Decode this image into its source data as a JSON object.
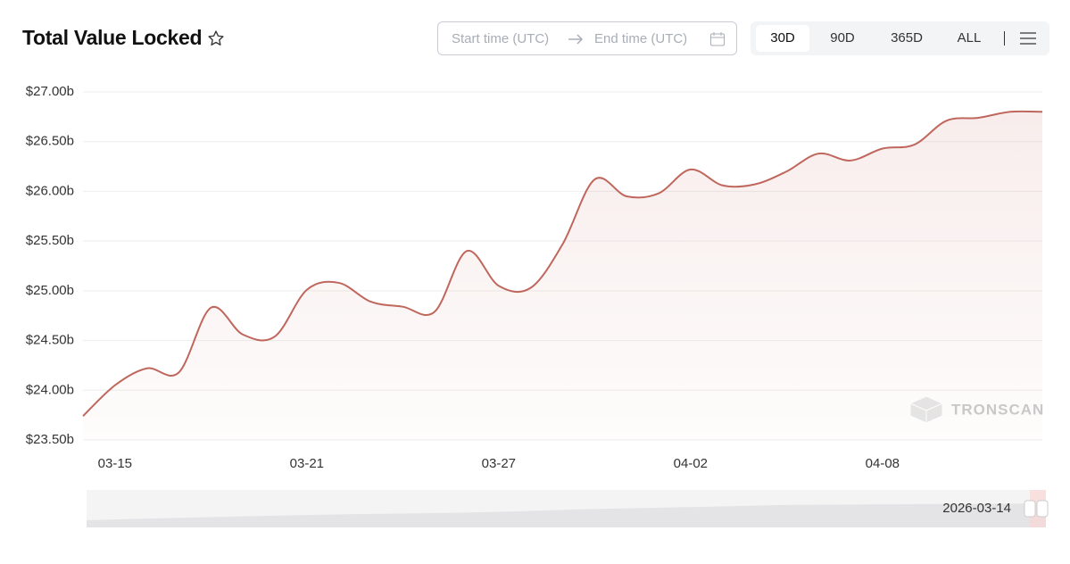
{
  "chart_data": {
    "type": "line",
    "title": "Total Value Locked",
    "categories": [
      null,
      "03-15",
      null,
      null,
      null,
      null,
      null,
      "03-21",
      null,
      null,
      null,
      null,
      null,
      "03-27",
      null,
      null,
      null,
      null,
      null,
      "04-02",
      null,
      null,
      null,
      null,
      null,
      "04-08",
      null,
      null,
      null,
      null,
      null
    ],
    "series": [
      {
        "name": null,
        "color": "#c0675d",
        "values": [
          23.74,
          24.05,
          24.22,
          24.18,
          24.83,
          24.56,
          24.54,
          25.01,
          25.08,
          24.89,
          24.84,
          24.79,
          25.4,
          25.05,
          25.03,
          25.47,
          26.12,
          25.95,
          25.98,
          26.22,
          26.06,
          26.07,
          26.2,
          26.38,
          26.31,
          26.43,
          26.47,
          26.71,
          26.74,
          26.8,
          26.8
        ]
      }
    ],
    "ylim": [
      23.5,
      27.0
    ],
    "yticks": [
      {
        "value": 23.5,
        "label": "$23.50b"
      },
      {
        "value": 24.0,
        "label": "$24.00b"
      },
      {
        "value": 24.5,
        "label": "$24.50b"
      },
      {
        "value": 25.0,
        "label": "$25.00b"
      },
      {
        "value": 25.5,
        "label": "$25.50b"
      },
      {
        "value": 26.0,
        "label": "$26.00b"
      },
      {
        "value": 26.5,
        "label": "$26.50b"
      },
      {
        "value": 27.0,
        "label": "$27.00b"
      }
    ],
    "grid": true
  },
  "toolbar": {
    "start_placeholder": "Start time (UTC)",
    "end_placeholder": "End time (UTC)",
    "ranges": [
      "30D",
      "90D",
      "365D",
      "ALL"
    ]
  },
  "watermark": "TRONSCAN",
  "range_label": "2026-03-14"
}
